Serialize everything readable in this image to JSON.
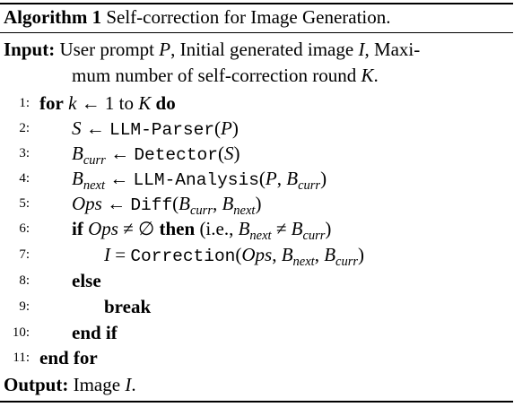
{
  "algorithm": {
    "label": "Algorithm 1",
    "caption": "Self-correction for Image Generation."
  },
  "input": {
    "label": "Input:",
    "line1_pre": "User prompt ",
    "var_P": "P",
    "line1_mid": ", Initial generated image ",
    "var_I": "I",
    "line1_post": ", Maxi-",
    "line2_pre": "mum number of self-correction round ",
    "var_K": "K",
    "line2_post": "."
  },
  "lines": [
    {
      "num": "1:",
      "kw_for": "for",
      "k": "k",
      "arrow": " ← 1 to ",
      "K": "K",
      "kw_do": "do"
    },
    {
      "num": "2:",
      "var": "S",
      "arrow": " ← ",
      "fn": "LLM-Parser",
      "open": "(",
      "arg": "P",
      "close": ")"
    },
    {
      "num": "3:",
      "var": "B",
      "sub": "curr",
      "arrow": " ← ",
      "fn": "Detector",
      "open": "(",
      "arg": "S",
      "close": ")"
    },
    {
      "num": "4:",
      "var": "B",
      "sub": "next",
      "arrow": " ← ",
      "fn": "LLM-Analysis",
      "open": "(",
      "arg1": "P",
      "comma": ", ",
      "arg2": "B",
      "arg2sub": "curr",
      "close": ")"
    },
    {
      "num": "5:",
      "var": "Ops",
      "arrow": " ← ",
      "fn": "Diff",
      "open": "(",
      "arg1": "B",
      "arg1sub": "curr",
      "comma": ", ",
      "arg2": "B",
      "arg2sub": "next",
      "close": ")"
    },
    {
      "num": "6:",
      "kw_if": "if",
      "ops": "Ops",
      "neq": " ≠ ∅ ",
      "kw_then": "then",
      "ie": " (i.e., ",
      "b1": "B",
      "b1sub": "next",
      "neq2": " ≠ ",
      "b2": "B",
      "b2sub": "curr",
      "ie_close": ")"
    },
    {
      "num": "7:",
      "var": "I",
      "eq": " = ",
      "fn": "Correction",
      "open": "(",
      "arg1": "Ops",
      "comma1": ", ",
      "arg2": "B",
      "arg2sub": "next",
      "comma2": ", ",
      "arg3": "B",
      "arg3sub": "curr",
      "close": ")"
    },
    {
      "num": "8:",
      "kw": "else"
    },
    {
      "num": "9:",
      "kw": "break"
    },
    {
      "num": "10:",
      "kw": "end if"
    },
    {
      "num": "11:",
      "kw": "end for"
    }
  ],
  "output": {
    "label": "Output:",
    "pre": "Image ",
    "var": "I",
    "post": "."
  }
}
